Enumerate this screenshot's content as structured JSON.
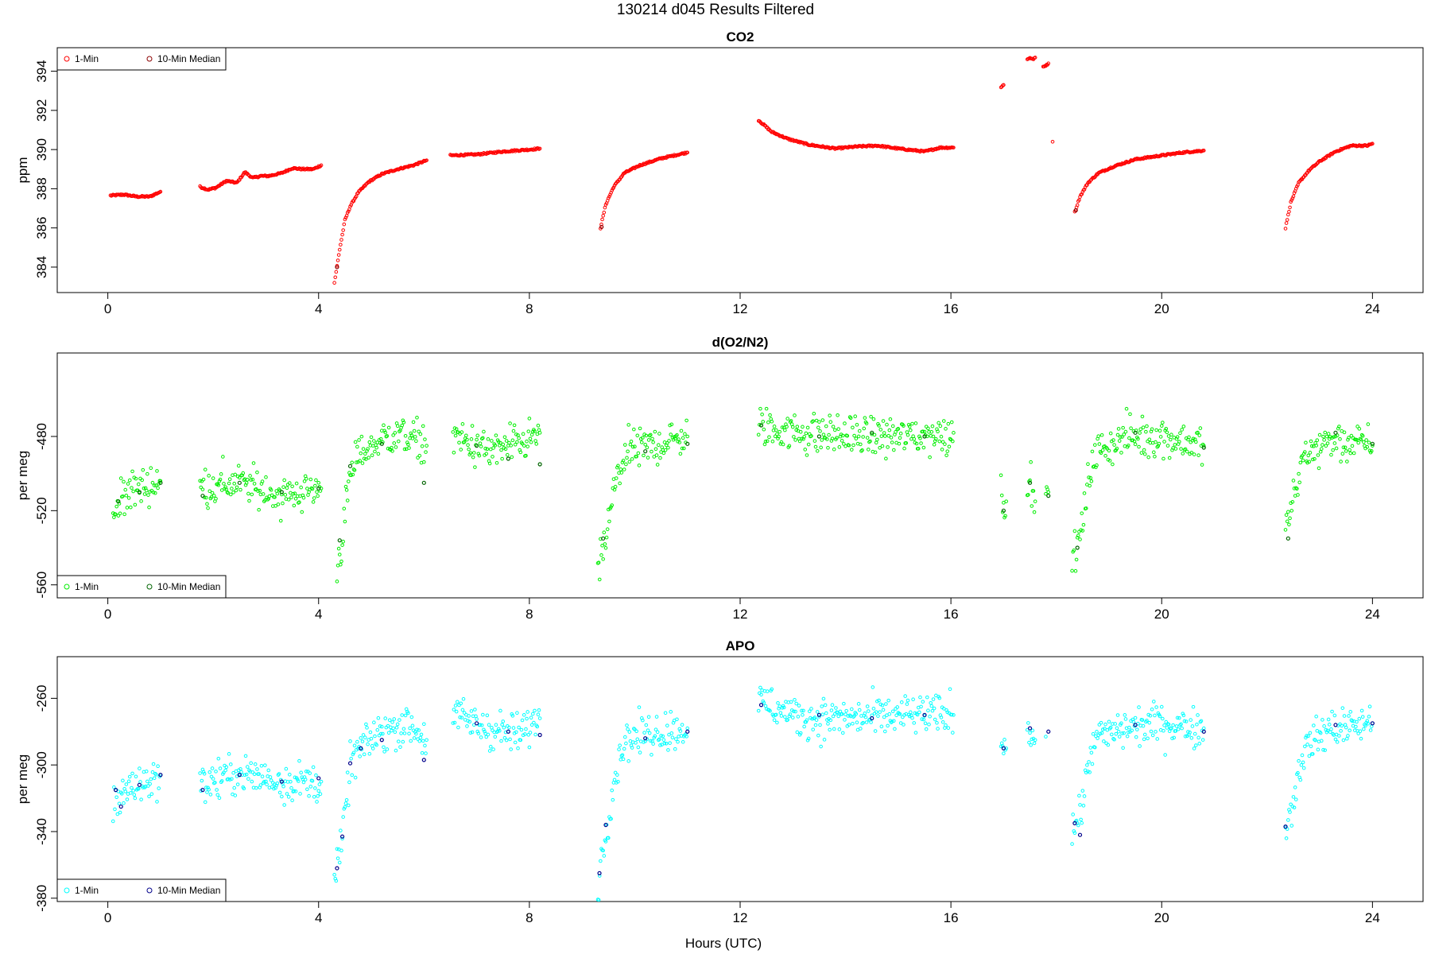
{
  "figure": {
    "title": "130214   d045   Results Filtered",
    "xlabel": "Hours (UTC)"
  },
  "chart_data": [
    {
      "type": "scatter",
      "title": "CO2",
      "ylabel": "ppm",
      "xlim": [
        -0.96,
        24.96
      ],
      "ylim": [
        382.7,
        395.2
      ],
      "xticks": [
        0,
        4,
        8,
        12,
        16,
        20,
        24
      ],
      "yticks": [
        384,
        386,
        388,
        390,
        392,
        394
      ],
      "legend": {
        "position": "top-left",
        "entries": [
          "1-Min",
          "10-Min Median"
        ]
      },
      "colors": {
        "one_min": "#ff0000",
        "median": "#8b0000"
      },
      "noise": 0,
      "series": [
        {
          "name": "1-Min",
          "segments": [
            {
              "x": [
                0.05,
                0.3,
                0.55,
                0.8,
                1.0
              ],
              "y": [
                387.65,
                387.7,
                387.6,
                387.6,
                387.85
              ]
            },
            {
              "x": [
                1.75,
                1.9,
                2.05,
                2.25,
                2.45,
                2.6,
                2.75,
                2.9,
                3.05,
                3.3,
                3.5,
                3.7,
                3.9,
                4.05
              ],
              "y": [
                388.1,
                387.95,
                388.05,
                388.4,
                388.3,
                388.85,
                388.55,
                388.65,
                388.65,
                388.8,
                389.05,
                389.0,
                389.0,
                389.2
              ]
            },
            {
              "x": [
                4.3,
                4.4,
                4.5,
                4.6,
                4.75,
                4.95,
                5.2,
                5.5,
                5.8,
                6.05
              ],
              "y": [
                383.2,
                384.9,
                386.4,
                387.1,
                387.8,
                388.35,
                388.75,
                389.0,
                389.2,
                389.45
              ]
            },
            {
              "x": [
                6.5,
                7.0,
                7.5,
                8.0,
                8.2
              ],
              "y": [
                389.7,
                389.75,
                389.9,
                390.0,
                390.05
              ]
            },
            {
              "x": [
                9.35,
                9.45,
                9.6,
                9.8,
                10.1,
                10.5,
                11.0
              ],
              "y": [
                386.0,
                387.2,
                388.1,
                388.8,
                389.2,
                389.55,
                389.85
              ]
            },
            {
              "x": [
                12.35,
                12.6,
                12.9,
                13.3,
                13.8,
                14.2,
                14.6,
                15.0,
                15.5,
                15.8,
                16.05
              ],
              "y": [
                391.5,
                390.9,
                390.55,
                390.25,
                390.05,
                390.15,
                390.2,
                390.05,
                389.9,
                390.1,
                390.1
              ]
            },
            {
              "x": [
                16.95,
                17.0
              ],
              "y": [
                393.2,
                393.3
              ]
            },
            {
              "x": [
                17.45,
                17.5,
                17.55,
                17.6
              ],
              "y": [
                394.6,
                394.7,
                394.6,
                394.7
              ]
            },
            {
              "x": [
                17.75,
                17.8,
                17.85
              ],
              "y": [
                394.2,
                394.3,
                394.4
              ]
            },
            {
              "x": [
                17.93
              ],
              "y": [
                390.4
              ]
            },
            {
              "x": [
                18.35,
                18.45,
                18.6,
                18.8,
                19.1,
                19.5,
                20.0,
                20.4,
                20.8
              ],
              "y": [
                386.8,
                387.6,
                388.3,
                388.8,
                389.15,
                389.5,
                389.7,
                389.85,
                389.95
              ]
            },
            {
              "x": [
                22.35,
                22.45,
                22.6,
                22.8,
                23.0,
                23.3,
                23.6,
                23.9,
                24.0
              ],
              "y": [
                386.0,
                387.3,
                388.3,
                388.95,
                389.4,
                389.9,
                390.2,
                390.2,
                390.3
              ]
            }
          ]
        },
        {
          "name": "10-Min Median",
          "segments": [
            {
              "x": [
                4.35
              ],
              "y": [
                384.0
              ]
            },
            {
              "x": [
                9.37
              ],
              "y": [
                386.05
              ]
            },
            {
              "x": [
                18.37
              ],
              "y": [
                386.9
              ]
            }
          ]
        }
      ]
    },
    {
      "type": "scatter",
      "title": "d(O2/N2)",
      "ylabel": "per meg",
      "xlim": [
        -0.96,
        24.96
      ],
      "ylim": [
        -567,
        -435
      ],
      "xticks": [
        0,
        4,
        8,
        12,
        16,
        20,
        24
      ],
      "yticks": [
        -560,
        -520,
        -480
      ],
      "legend": {
        "position": "bottom-left",
        "entries": [
          "1-Min",
          "10-Min Median"
        ]
      },
      "colors": {
        "one_min": "#00ee00",
        "median": "#006400"
      },
      "noise": 9,
      "series": [
        {
          "name": "1-Min",
          "segments": [
            {
              "x": [
                0.1,
                0.3,
                0.6,
                1.0
              ],
              "y": [
                -525,
                -510,
                -508,
                -504
              ]
            },
            {
              "x": [
                1.75,
                2.5,
                3.3,
                4.05
              ],
              "y": [
                -508,
                -505,
                -512,
                -508
              ]
            },
            {
              "x": [
                4.35,
                4.45,
                4.55,
                4.7,
                5.0,
                5.5,
                6.05
              ],
              "y": [
                -550,
                -535,
                -510,
                -492,
                -485,
                -478,
                -485
              ]
            },
            {
              "x": [
                6.55,
                7.2,
                7.8,
                8.2
              ],
              "y": [
                -480,
                -488,
                -485,
                -478
              ]
            },
            {
              "x": [
                9.3,
                9.45,
                9.6,
                9.8,
                10.3,
                11.0
              ],
              "y": [
                -555,
                -535,
                -510,
                -490,
                -485,
                -480
              ]
            },
            {
              "x": [
                12.35,
                13.2,
                14.2,
                15.2,
                16.05
              ],
              "y": [
                -475,
                -478,
                -480,
                -480,
                -478
              ]
            },
            {
              "x": [
                16.95,
                17.05
              ],
              "y": [
                -510,
                -515
              ]
            },
            {
              "x": [
                17.45,
                17.6
              ],
              "y": [
                -505,
                -515
              ]
            },
            {
              "x": [
                17.8,
                17.85
              ],
              "y": [
                -512,
                -510
              ]
            },
            {
              "x": [
                18.3,
                18.45,
                18.7,
                19.3,
                20.0,
                20.8
              ],
              "y": [
                -545,
                -535,
                -490,
                -480,
                -480,
                -485
              ]
            },
            {
              "x": [
                22.35,
                22.5,
                22.7,
                23.2,
                24.0
              ],
              "y": [
                -530,
                -515,
                -490,
                -482,
                -485
              ]
            }
          ]
        },
        {
          "name": "10-Min Median",
          "segments": [
            {
              "x": [
                0.2,
                0.6,
                1.0
              ],
              "y": [
                -515,
                -510,
                -505
              ]
            },
            {
              "x": [
                1.8,
                2.5,
                3.3,
                4.0
              ],
              "y": [
                -512,
                -505,
                -510,
                -508
              ]
            },
            {
              "x": [
                4.4,
                4.6,
                5.2,
                6.0
              ],
              "y": [
                -536,
                -496,
                -484,
                -505
              ]
            },
            {
              "x": [
                7.0,
                7.6,
                8.2
              ],
              "y": [
                -485,
                -492,
                -495
              ]
            },
            {
              "x": [
                9.4,
                10.2,
                11.0
              ],
              "y": [
                -535,
                -488,
                -484
              ]
            },
            {
              "x": [
                12.4,
                13.5,
                14.5,
                15.5
              ],
              "y": [
                -474,
                -480,
                -478,
                -480
              ]
            },
            {
              "x": [
                17.0,
                17.5,
                17.85
              ],
              "y": [
                -520,
                -505,
                -512
              ]
            },
            {
              "x": [
                18.4,
                19.5,
                20.8
              ],
              "y": [
                -540,
                -478,
                -486
              ]
            },
            {
              "x": [
                22.4,
                23.3,
                24.0
              ],
              "y": [
                -535,
                -478,
                -484
              ]
            }
          ]
        }
      ]
    },
    {
      "type": "scatter",
      "title": "APO",
      "ylabel": "per meg",
      "xlim": [
        -0.96,
        24.96
      ],
      "ylim": [
        -382,
        -235
      ],
      "xticks": [
        0,
        4,
        8,
        12,
        16,
        20,
        24
      ],
      "yticks": [
        -380,
        -340,
        -300,
        -260
      ],
      "legend": {
        "position": "bottom-left",
        "entries": [
          "1-Min",
          "10-Min Median"
        ]
      },
      "colors": {
        "one_min": "#00ffff",
        "median": "#00008b"
      },
      "noise": 10,
      "series": [
        {
          "name": "1-Min",
          "segments": [
            {
              "x": [
                0.1,
                0.3,
                0.6,
                1.0
              ],
              "y": [
                -325,
                -315,
                -312,
                -306
              ]
            },
            {
              "x": [
                1.75,
                2.5,
                3.3,
                4.05
              ],
              "y": [
                -312,
                -305,
                -310,
                -310
              ]
            },
            {
              "x": [
                4.3,
                4.45,
                4.6,
                4.8,
                5.2,
                5.7,
                6.05
              ],
              "y": [
                -370,
                -345,
                -300,
                -290,
                -280,
                -275,
                -285
              ]
            },
            {
              "x": [
                6.55,
                7.2,
                7.8,
                8.2
              ],
              "y": [
                -270,
                -278,
                -282,
                -272
              ]
            },
            {
              "x": [
                9.3,
                9.45,
                9.6,
                9.8,
                10.4,
                11.0
              ],
              "y": [
                -370,
                -340,
                -310,
                -285,
                -280,
                -278
              ]
            },
            {
              "x": [
                12.35,
                13.2,
                14.2,
                15.2,
                16.05
              ],
              "y": [
                -262,
                -272,
                -272,
                -270,
                -270
              ]
            },
            {
              "x": [
                16.95,
                17.05
              ],
              "y": [
                -285,
                -290
              ]
            },
            {
              "x": [
                17.45,
                17.6
              ],
              "y": [
                -275,
                -285
              ]
            },
            {
              "x": [
                17.8
              ],
              "y": [
                -283
              ]
            },
            {
              "x": [
                18.3,
                18.45,
                18.7,
                19.3,
                20.0,
                20.8
              ],
              "y": [
                -340,
                -330,
                -285,
                -278,
                -275,
                -278
              ]
            },
            {
              "x": [
                22.35,
                22.5,
                22.7,
                23.2,
                24.0
              ],
              "y": [
                -340,
                -320,
                -290,
                -278,
                -275
              ]
            }
          ]
        },
        {
          "name": "10-Min Median",
          "segments": [
            {
              "x": [
                0.15,
                0.25,
                0.6,
                1.0
              ],
              "y": [
                -315,
                -325,
                -312,
                -306
              ]
            },
            {
              "x": [
                1.8,
                2.5,
                3.3,
                4.0
              ],
              "y": [
                -315,
                -306,
                -310,
                -308
              ]
            },
            {
              "x": [
                4.35,
                4.45,
                4.6,
                4.8,
                5.2,
                6.0
              ],
              "y": [
                -362,
                -343,
                -299,
                -290,
                -285,
                -297
              ]
            },
            {
              "x": [
                7.0,
                7.6,
                8.2
              ],
              "y": [
                -275,
                -280,
                -282
              ]
            },
            {
              "x": [
                9.33,
                9.45,
                10.2,
                11.0
              ],
              "y": [
                -365,
                -336,
                -284,
                -280
              ]
            },
            {
              "x": [
                12.4,
                13.5,
                14.5,
                15.5
              ],
              "y": [
                -264,
                -270,
                -272,
                -270
              ]
            },
            {
              "x": [
                17.0,
                17.5,
                17.85
              ],
              "y": [
                -290,
                -278,
                -280
              ]
            },
            {
              "x": [
                18.35,
                18.45,
                19.5,
                20.8
              ],
              "y": [
                -335,
                -342,
                -276,
                -280
              ]
            },
            {
              "x": [
                22.35,
                23.3,
                24.0
              ],
              "y": [
                -337,
                -276,
                -275
              ]
            }
          ]
        }
      ]
    }
  ]
}
